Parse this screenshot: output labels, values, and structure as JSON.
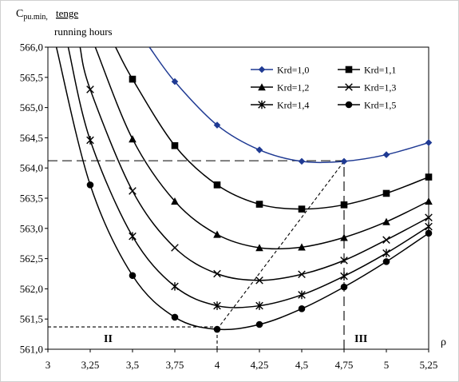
{
  "chart_data": {
    "type": "line",
    "ylabel_main": "C",
    "ylabel_sub": "pu.min,",
    "ylabel_unit": "tenge",
    "ylabel_denominator": "running hours",
    "xlabel": "ρ",
    "xlim": [
      3,
      5.25
    ],
    "ylim": [
      561.0,
      566.0
    ],
    "x_ticks": [
      "3",
      "3,25",
      "3,5",
      "3,75",
      "4",
      "4,25",
      "4,5",
      "4,75",
      "5",
      "5,25"
    ],
    "y_ticks": [
      "561,0",
      "561,5",
      "562,0",
      "562,5",
      "563,0",
      "563,5",
      "564,0",
      "564,5",
      "565,0",
      "565,5",
      "566,0"
    ],
    "grid": false,
    "legend_position": "top-right",
    "region_labels": [
      "II",
      "III"
    ],
    "series": [
      {
        "name": "Krd=1,0",
        "marker": "diamond",
        "color": "#1f3a93",
        "x": [
          3.75,
          4.0,
          4.25,
          4.5,
          4.75,
          5.0,
          5.25
        ],
        "y": [
          565.43,
          564.71,
          564.3,
          564.11,
          564.11,
          564.22,
          564.42
        ],
        "curve": [
          [
            3.6,
            566.0
          ],
          [
            3.75,
            565.43
          ],
          [
            4.0,
            564.71
          ],
          [
            4.25,
            564.3
          ],
          [
            4.5,
            564.11
          ],
          [
            4.75,
            564.11
          ],
          [
            5.0,
            564.22
          ],
          [
            5.25,
            564.42
          ]
        ]
      },
      {
        "name": "Krd=1,1",
        "marker": "square",
        "color": "#000000",
        "x": [
          3.5,
          3.75,
          4.0,
          4.25,
          4.5,
          4.75,
          5.0,
          5.25
        ],
        "y": [
          565.47,
          564.37,
          563.72,
          563.4,
          563.32,
          563.39,
          563.58,
          563.85
        ],
        "curve": [
          [
            3.4,
            566.0
          ],
          [
            3.5,
            565.47
          ],
          [
            3.75,
            564.37
          ],
          [
            4.0,
            563.72
          ],
          [
            4.25,
            563.4
          ],
          [
            4.5,
            563.32
          ],
          [
            4.75,
            563.39
          ],
          [
            5.0,
            563.58
          ],
          [
            5.25,
            563.85
          ]
        ]
      },
      {
        "name": "Krd=1,2",
        "marker": "triangle",
        "color": "#000000",
        "x": [
          3.5,
          3.75,
          4.0,
          4.25,
          4.5,
          4.75,
          5.0,
          5.25
        ],
        "y": [
          564.48,
          563.45,
          562.9,
          562.68,
          562.69,
          562.85,
          563.11,
          563.45
        ],
        "curve": [
          [
            3.28,
            566.0
          ],
          [
            3.5,
            564.48
          ],
          [
            3.75,
            563.45
          ],
          [
            4.0,
            562.9
          ],
          [
            4.25,
            562.68
          ],
          [
            4.5,
            562.69
          ],
          [
            4.75,
            562.85
          ],
          [
            5.0,
            563.11
          ],
          [
            5.25,
            563.45
          ]
        ]
      },
      {
        "name": "Krd=1,3",
        "marker": "x",
        "color": "#000000",
        "x": [
          3.25,
          3.5,
          3.75,
          4.0,
          4.25,
          4.5,
          4.75,
          5.0,
          5.25
        ],
        "y": [
          565.3,
          563.62,
          562.68,
          562.25,
          562.14,
          562.24,
          562.47,
          562.81,
          563.18
        ],
        "curve": [
          [
            3.19,
            566.0
          ],
          [
            3.25,
            565.3
          ],
          [
            3.5,
            563.62
          ],
          [
            3.75,
            562.68
          ],
          [
            4.0,
            562.25
          ],
          [
            4.25,
            562.14
          ],
          [
            4.5,
            562.24
          ],
          [
            4.75,
            562.47
          ],
          [
            5.0,
            562.81
          ],
          [
            5.25,
            563.18
          ]
        ]
      },
      {
        "name": "Krd=1,4",
        "marker": "star",
        "color": "#000000",
        "x": [
          3.25,
          3.5,
          3.75,
          4.0,
          4.25,
          4.5,
          4.75,
          5.0,
          5.25
        ],
        "y": [
          564.46,
          562.87,
          562.04,
          561.72,
          561.72,
          561.9,
          562.21,
          562.59,
          563.03
        ],
        "curve": [
          [
            3.12,
            566.0
          ],
          [
            3.25,
            564.46
          ],
          [
            3.5,
            562.87
          ],
          [
            3.75,
            562.04
          ],
          [
            4.0,
            561.72
          ],
          [
            4.25,
            561.72
          ],
          [
            4.5,
            561.9
          ],
          [
            4.75,
            562.21
          ],
          [
            5.0,
            562.59
          ],
          [
            5.25,
            563.03
          ]
        ]
      },
      {
        "name": "Krd=1,5",
        "marker": "circle",
        "color": "#000000",
        "x": [
          3.25,
          3.5,
          3.75,
          4.0,
          4.25,
          4.5,
          4.75,
          5.0,
          5.25
        ],
        "y": [
          563.72,
          562.22,
          561.53,
          561.33,
          561.41,
          561.67,
          562.03,
          562.45,
          562.92
        ],
        "curve": [
          [
            3.05,
            566.0
          ],
          [
            3.25,
            563.72
          ],
          [
            3.5,
            562.22
          ],
          [
            3.75,
            561.53
          ],
          [
            4.0,
            561.33
          ],
          [
            4.25,
            561.41
          ],
          [
            4.5,
            561.67
          ],
          [
            4.75,
            562.03
          ],
          [
            5.0,
            562.45
          ],
          [
            5.25,
            562.92
          ]
        ]
      }
    ],
    "reference_lines": [
      {
        "kind": "hline",
        "y": 564.12,
        "from_x": 3.0,
        "to_x": 4.75
      },
      {
        "kind": "vline",
        "x": 4.75,
        "from_y": 561.0,
        "to_y": 564.12
      },
      {
        "kind": "hline",
        "y": 561.37,
        "from_x": 3.0,
        "to_x": 4.0
      },
      {
        "kind": "vline",
        "x": 4.0,
        "from_y": 561.0,
        "to_y": 561.37
      },
      {
        "kind": "diagonal",
        "points": [
          [
            4.0,
            561.33
          ],
          [
            4.75,
            564.11
          ]
        ]
      }
    ]
  }
}
